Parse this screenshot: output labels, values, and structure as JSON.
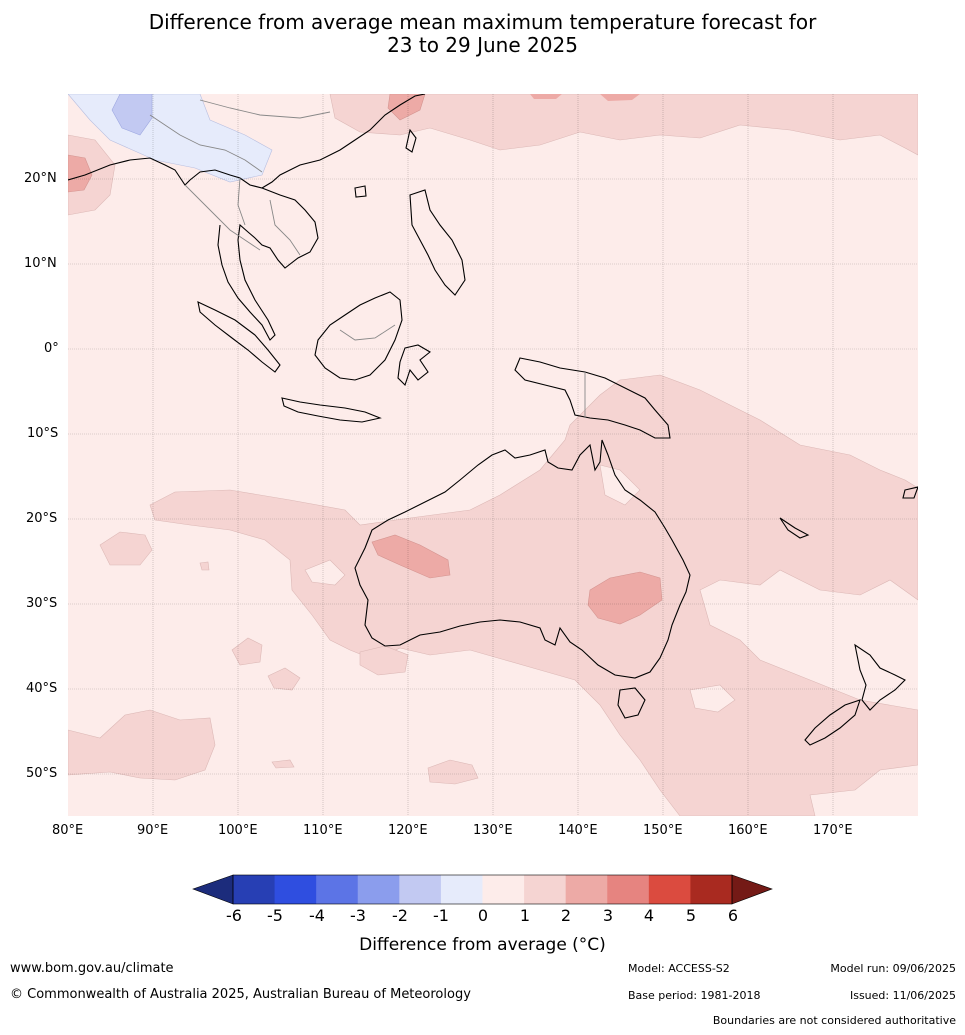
{
  "title": {
    "line1": "Difference from average mean maximum temperature forecast for",
    "line2": "23 to 29 June 2025"
  },
  "axes": {
    "lon_ticks": [
      "80°E",
      "90°E",
      "100°E",
      "110°E",
      "120°E",
      "130°E",
      "140°E",
      "150°E",
      "160°E",
      "170°E"
    ],
    "lat_ticks": [
      "20°N",
      "10°N",
      "0°",
      "10°S",
      "20°S",
      "30°S",
      "40°S",
      "50°S"
    ]
  },
  "colorbar": {
    "ticks": [
      "-6",
      "-5",
      "-4",
      "-3",
      "-2",
      "-1",
      "0",
      "1",
      "2",
      "3",
      "4",
      "5",
      "6"
    ],
    "colors": [
      "#273fb4",
      "#2f4ee0",
      "#5c74e6",
      "#8b9ded",
      "#c2c9f2",
      "#e6ebfb",
      "#fdecea",
      "#f5d4d2",
      "#edaaa6",
      "#e68480",
      "#db4b3f",
      "#a92a20"
    ],
    "low_extend_color": "#1c2c7c",
    "high_extend_color": "#741a16",
    "label": "Difference from average (°C)"
  },
  "footer": {
    "url": "www.bom.gov.au/climate",
    "copyright": "© Commonwealth of Australia 2025, Australian Bureau of Meteorology",
    "model": "Model: ACCESS-S2",
    "base_period": "Base period: 1981-2018",
    "model_run": "Model run: 09/06/2025",
    "issued": "Issued: 11/06/2025",
    "disclaimer": "Boundaries are not considered authoritative"
  }
}
